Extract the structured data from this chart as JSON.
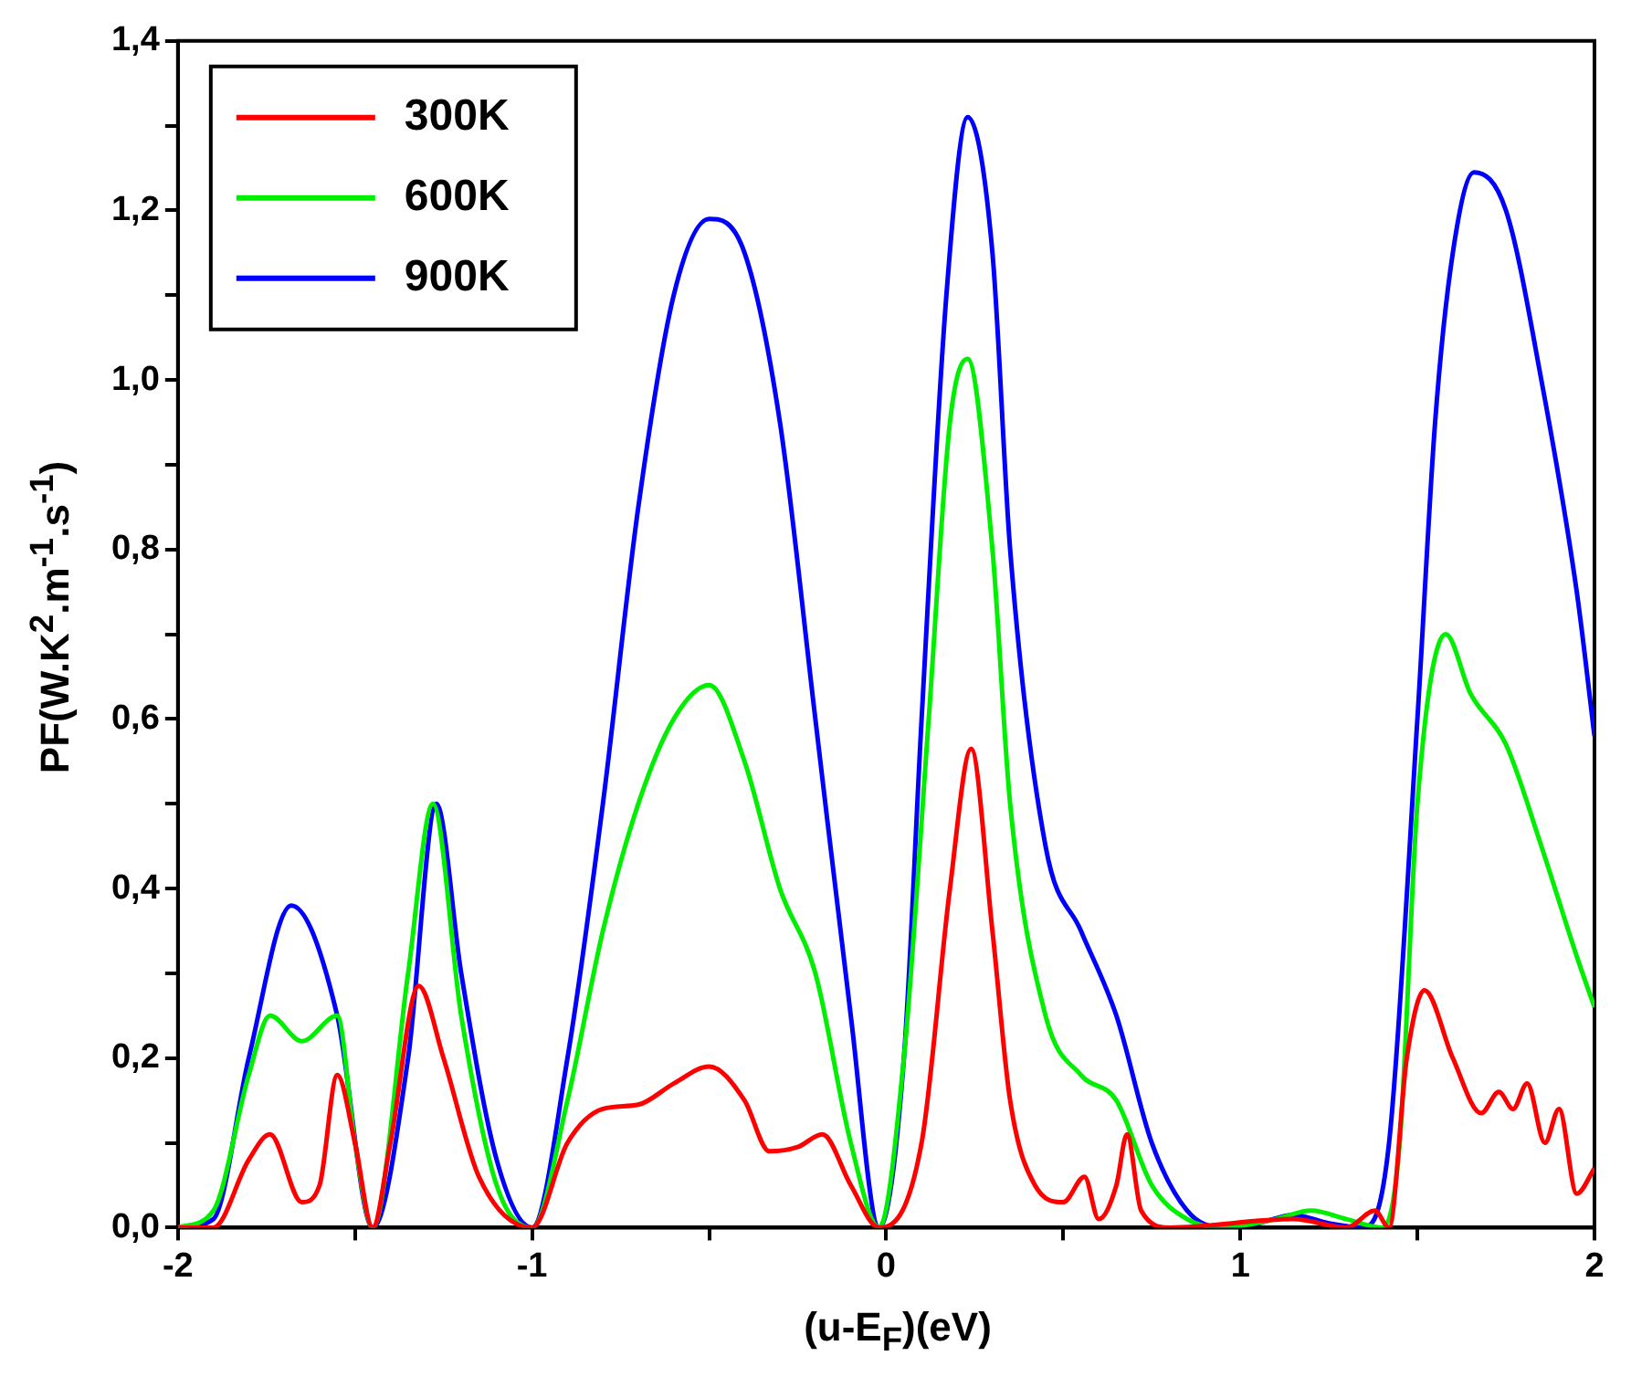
{
  "chart_data": {
    "type": "line",
    "xlabel": "(u-E$_{F}$)(eV)",
    "ylabel": "PF(W.K$^{2}$.m$^{-1}$.s$^{-1}$)",
    "xlim": [
      -2,
      2
    ],
    "ylim": [
      0,
      1.4
    ],
    "xticks": [
      {
        "value": -2,
        "label": "-2"
      },
      {
        "value": -1.5,
        "label": null
      },
      {
        "value": -1,
        "label": "-1"
      },
      {
        "value": -0.5,
        "label": null
      },
      0,
      {
        "value": 0.5,
        "label": null
      },
      1,
      {
        "value": 1.5,
        "label": null
      },
      2
    ],
    "yticks": [
      {
        "value": 0,
        "label": "0,0"
      },
      {
        "value": 0.1,
        "label": null
      },
      {
        "value": 0.2,
        "label": "0,2"
      },
      {
        "value": 0.3,
        "label": null
      },
      {
        "value": 0.4,
        "label": "0,4"
      },
      {
        "value": 0.5,
        "label": null
      },
      {
        "value": 0.6,
        "label": "0,6"
      },
      {
        "value": 0.7,
        "label": null
      },
      {
        "value": 0.8,
        "label": "0,8"
      },
      {
        "value": 0.9,
        "label": null
      },
      {
        "value": 1.0,
        "label": "1,0"
      },
      {
        "value": 1.1,
        "label": null
      },
      {
        "value": 1.2,
        "label": "1,2"
      },
      {
        "value": 1.3,
        "label": null
      },
      {
        "value": 1.4,
        "label": "1,4"
      }
    ],
    "legend": "top left",
    "grid": false,
    "marker": "none",
    "line_style": "solid",
    "series": [
      {
        "name": "300K",
        "color": "#ff0000",
        "x": [
          -2,
          -1.9,
          -1.8,
          -1.74,
          -1.65,
          -1.6,
          -1.55,
          -1.5,
          -1.45,
          -1.4,
          -1.32,
          -1.25,
          -1.15,
          -1,
          -0.9,
          -0.8,
          -0.7,
          -0.6,
          -0.5,
          -0.4,
          -0.33,
          -0.25,
          -0.18,
          -0.1,
          -0.02,
          0.1,
          0.18,
          0.24,
          0.3,
          0.35,
          0.42,
          0.5,
          0.56,
          0.6,
          0.65,
          0.68,
          0.72,
          0.8,
          1.15,
          1.3,
          1.38,
          1.42,
          1.47,
          1.52,
          1.6,
          1.68,
          1.73,
          1.77,
          1.81,
          1.86,
          1.9,
          1.95,
          2
        ],
        "values": [
          0,
          0,
          0.08,
          0.11,
          0.03,
          0.05,
          0.18,
          0.1,
          0,
          0.1,
          0.285,
          0.2,
          0.06,
          0,
          0.1,
          0.14,
          0.145,
          0.17,
          0.19,
          0.15,
          0.09,
          0.095,
          0.11,
          0.05,
          0,
          0.1,
          0.4,
          0.565,
          0.35,
          0.15,
          0.05,
          0.03,
          0.06,
          0.01,
          0.05,
          0.11,
          0.02,
          0,
          0.01,
          0,
          0.02,
          0,
          0.2,
          0.28,
          0.2,
          0.135,
          0.16,
          0.14,
          0.17,
          0.1,
          0.14,
          0.04,
          0.07
        ]
      },
      {
        "name": "600K",
        "color": "#00ee00",
        "x": [
          -2,
          -1.9,
          -1.8,
          -1.74,
          -1.65,
          -1.55,
          -1.5,
          -1.45,
          -1.35,
          -1.28,
          -1.2,
          -1.1,
          -1,
          -0.9,
          -0.8,
          -0.7,
          -0.6,
          -0.5,
          -0.4,
          -0.3,
          -0.2,
          -0.1,
          -0.02,
          0.05,
          0.12,
          0.18,
          0.23,
          0.3,
          0.35,
          0.45,
          0.55,
          0.65,
          0.75,
          0.85,
          0.95,
          1.1,
          1.2,
          1.3,
          1.4,
          1.45,
          1.5,
          1.58,
          1.65,
          1.75,
          1.85,
          1.95,
          2
        ],
        "values": [
          0,
          0.02,
          0.18,
          0.25,
          0.22,
          0.25,
          0.1,
          0,
          0.3,
          0.5,
          0.25,
          0.05,
          0,
          0.15,
          0.35,
          0.5,
          0.6,
          0.64,
          0.55,
          0.4,
          0.3,
          0.1,
          0,
          0.2,
          0.6,
          0.95,
          1.025,
          0.8,
          0.5,
          0.25,
          0.18,
          0.15,
          0.05,
          0.01,
          0,
          0.01,
          0.02,
          0.01,
          0,
          0.1,
          0.5,
          0.7,
          0.63,
          0.57,
          0.45,
          0.32,
          0.26
        ]
      },
      {
        "name": "900K",
        "color": "#0000ff",
        "x": [
          -2,
          -1.9,
          -1.8,
          -1.68,
          -1.55,
          -1.45,
          -1.35,
          -1.27,
          -1.2,
          -1.1,
          -1,
          -0.9,
          -0.8,
          -0.7,
          -0.6,
          -0.5,
          -0.4,
          -0.3,
          -0.2,
          -0.1,
          -0.02,
          0.05,
          0.1,
          0.17,
          0.23,
          0.3,
          0.35,
          0.45,
          0.55,
          0.65,
          0.75,
          0.85,
          0.95,
          1.05,
          1.15,
          1.25,
          1.35,
          1.42,
          1.5,
          1.55,
          1.6,
          1.66,
          1.75,
          1.85,
          1.95,
          2
        ],
        "values": [
          0,
          0.01,
          0.2,
          0.38,
          0.25,
          0,
          0.2,
          0.5,
          0.3,
          0.08,
          0,
          0.2,
          0.5,
          0.85,
          1.1,
          1.19,
          1.15,
          0.95,
          0.6,
          0.25,
          0,
          0.2,
          0.6,
          1.1,
          1.31,
          1.15,
          0.8,
          0.45,
          0.35,
          0.25,
          0.1,
          0.02,
          0,
          0.005,
          0.015,
          0.005,
          0,
          0.1,
          0.6,
          0.95,
          1.15,
          1.245,
          1.2,
          1,
          0.75,
          0.58
        ]
      }
    ]
  }
}
